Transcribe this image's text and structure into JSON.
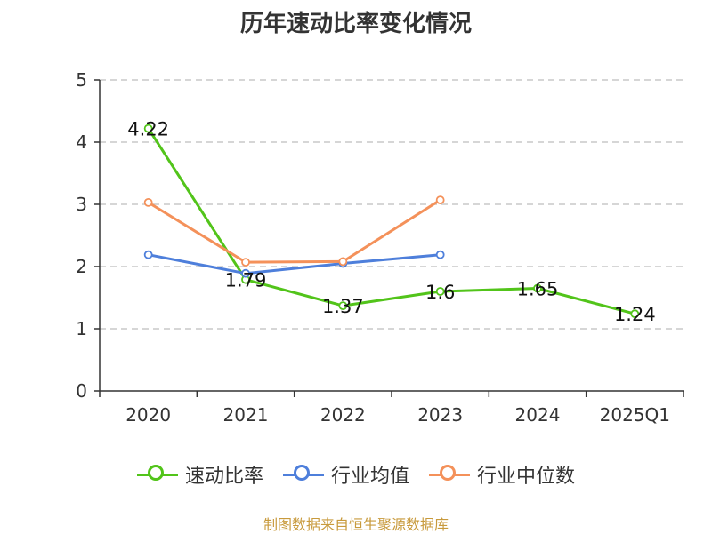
{
  "chart_data": {
    "type": "line",
    "title": "历年速动比率变化情况",
    "categories": [
      "2020",
      "2021",
      "2022",
      "2023",
      "2024",
      "2025Q1"
    ],
    "ylim": [
      0,
      5
    ],
    "yticks": [
      "0",
      "1",
      "2",
      "3",
      "4",
      "5"
    ],
    "grid": true,
    "legend_position": "bottom",
    "series": [
      {
        "name": "速动比率",
        "color": "#52c41a",
        "values": [
          4.22,
          1.79,
          1.37,
          1.6,
          1.65,
          1.24
        ],
        "labels": [
          "4.22",
          "1.79",
          "1.37",
          "1.6",
          "1.65",
          "1.24"
        ]
      },
      {
        "name": "行业均值",
        "color": "#4e7fdb",
        "values": [
          2.19,
          1.89,
          2.05,
          2.19,
          null,
          null
        ]
      },
      {
        "name": "行业中位数",
        "color": "#f4915a",
        "values": [
          3.03,
          2.07,
          2.08,
          3.07,
          null,
          null
        ]
      }
    ]
  },
  "footer": {
    "text": "制图数据来自恒生聚源数据库",
    "color": "#c89a3c"
  }
}
